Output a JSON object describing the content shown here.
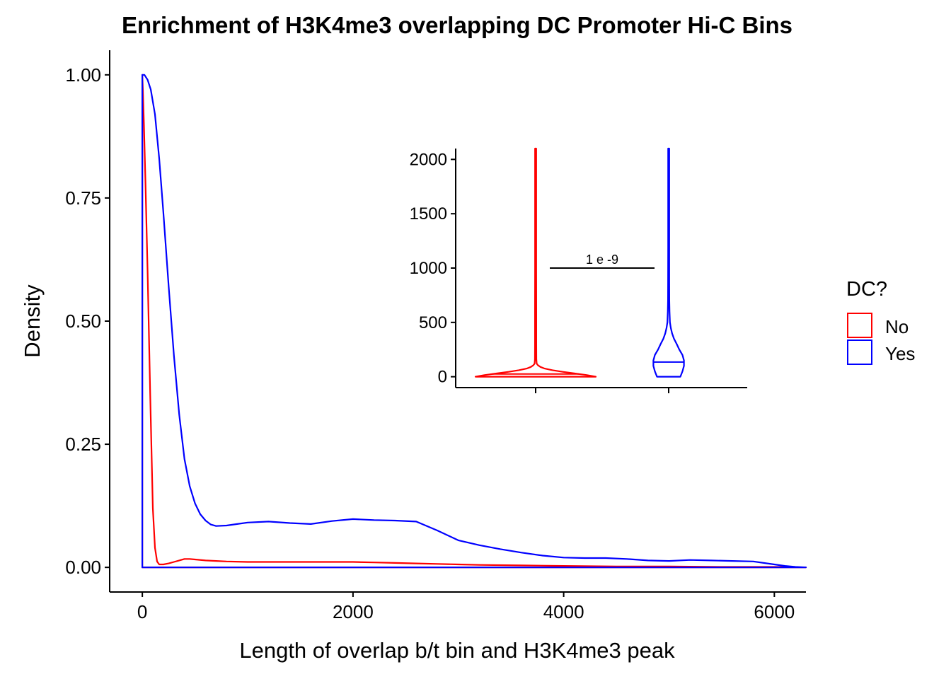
{
  "colors": {
    "No": "#FF0000",
    "Yes": "#0000FF"
  },
  "chart_data": [
    {
      "type": "line",
      "title": "Enrichment of H3K4me3 overlapping DC Promoter Hi-C Bins",
      "xlabel": "Length of overlap b/t bin and H3K4me3 peak",
      "ylabel": "Density",
      "xlim": [
        -310,
        6300
      ],
      "ylim": [
        -0.05,
        1.05
      ],
      "xticks": [
        0,
        2000,
        4000,
        6000
      ],
      "xtick_labels": [
        "0",
        "2000",
        "4000",
        "6000"
      ],
      "yticks": [
        0,
        0.25,
        0.5,
        0.75,
        1.0
      ],
      "ytick_labels": [
        "0.00",
        "0.25",
        "0.50",
        "0.75",
        "1.00"
      ],
      "grid": false,
      "legend": {
        "title": "DC?",
        "position": "right",
        "entries": [
          "No",
          "Yes"
        ]
      },
      "series": [
        {
          "name": "No",
          "x": [
            0,
            5,
            15,
            30,
            50,
            75,
            100,
            120,
            140,
            160,
            200,
            250,
            300,
            350,
            400,
            450,
            500,
            600,
            700,
            800,
            1000,
            1200,
            1400,
            1600,
            1800,
            2000,
            2200,
            2400,
            2600,
            2800,
            3000,
            3200,
            3600,
            4000,
            4500,
            5000,
            5500,
            6000,
            6300
          ],
          "y": [
            1.0,
            0.97,
            0.9,
            0.78,
            0.6,
            0.35,
            0.12,
            0.04,
            0.012,
            0.006,
            0.006,
            0.008,
            0.011,
            0.014,
            0.017,
            0.017,
            0.016,
            0.014,
            0.013,
            0.012,
            0.011,
            0.011,
            0.011,
            0.011,
            0.011,
            0.011,
            0.01,
            0.009,
            0.008,
            0.007,
            0.006,
            0.005,
            0.004,
            0.003,
            0.002,
            0.002,
            0.001,
            0.001,
            0.0
          ]
        },
        {
          "name": "Yes",
          "x": [
            0,
            20,
            50,
            80,
            120,
            160,
            200,
            250,
            300,
            350,
            400,
            450,
            500,
            550,
            600,
            650,
            700,
            800,
            900,
            1000,
            1200,
            1400,
            1600,
            1800,
            2000,
            2200,
            2400,
            2600,
            2800,
            3000,
            3200,
            3400,
            3600,
            3800,
            4000,
            4200,
            4400,
            4600,
            4800,
            5000,
            5200,
            5400,
            5600,
            5800,
            6000,
            6100,
            6200,
            6300
          ],
          "y": [
            1.0,
            1.0,
            0.99,
            0.97,
            0.92,
            0.83,
            0.72,
            0.57,
            0.43,
            0.31,
            0.22,
            0.165,
            0.13,
            0.108,
            0.095,
            0.087,
            0.084,
            0.085,
            0.088,
            0.091,
            0.093,
            0.09,
            0.088,
            0.094,
            0.098,
            0.096,
            0.095,
            0.093,
            0.075,
            0.055,
            0.045,
            0.037,
            0.03,
            0.024,
            0.02,
            0.019,
            0.019,
            0.017,
            0.014,
            0.013,
            0.015,
            0.014,
            0.013,
            0.012,
            0.006,
            0.003,
            0.001,
            0.0
          ]
        }
      ]
    },
    {
      "type": "violin",
      "categories": [
        "No",
        "Yes"
      ],
      "ylim": [
        -100,
        2100
      ],
      "yticks": [
        0,
        500,
        1000,
        1500,
        2000
      ],
      "ytick_labels": [
        "0",
        "500",
        "1000",
        "1500",
        "2000"
      ],
      "annotation": {
        "label": "1 e -9",
        "y": 1000
      },
      "series": [
        {
          "name": "No",
          "median": 25,
          "profile": [
            [
              0,
              1.0
            ],
            [
              15,
              0.85
            ],
            [
              30,
              0.65
            ],
            [
              45,
              0.45
            ],
            [
              60,
              0.28
            ],
            [
              75,
              0.15
            ],
            [
              90,
              0.08
            ],
            [
              105,
              0.04
            ],
            [
              120,
              0.018
            ],
            [
              160,
              0.012
            ],
            [
              300,
              0.01
            ],
            [
              600,
              0.01
            ],
            [
              1000,
              0.009
            ],
            [
              1500,
              0.009
            ],
            [
              2100,
              0.009
            ]
          ]
        },
        {
          "name": "Yes",
          "median": 135,
          "profile": [
            [
              0,
              0.55
            ],
            [
              50,
              0.65
            ],
            [
              100,
              0.72
            ],
            [
              150,
              0.72
            ],
            [
              200,
              0.65
            ],
            [
              250,
              0.5
            ],
            [
              300,
              0.38
            ],
            [
              350,
              0.25
            ],
            [
              400,
              0.16
            ],
            [
              450,
              0.1
            ],
            [
              500,
              0.06
            ],
            [
              600,
              0.04
            ],
            [
              700,
              0.03
            ],
            [
              900,
              0.028
            ],
            [
              1200,
              0.025
            ],
            [
              1600,
              0.025
            ],
            [
              2100,
              0.025
            ]
          ]
        }
      ]
    }
  ]
}
